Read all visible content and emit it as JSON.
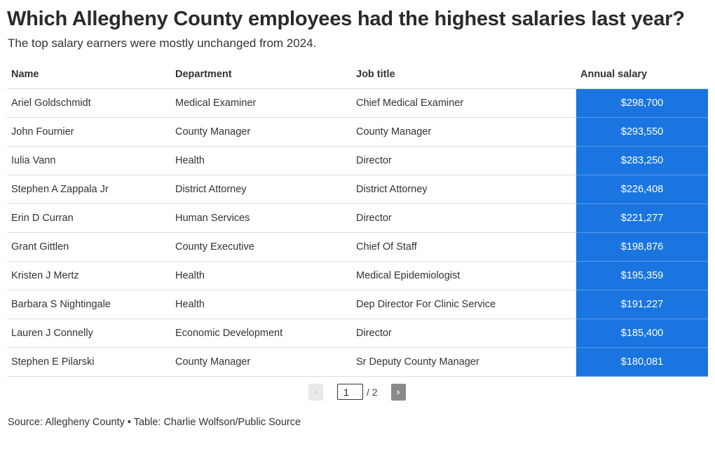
{
  "chart_data": {
    "type": "table",
    "title": "Which Allegheny County employees had the highest salaries last year?",
    "subtitle": "The top salary earners were mostly unchanged from 2024.",
    "columns": [
      "Name",
      "Department",
      "Job title",
      "Annual salary"
    ],
    "rows": [
      {
        "name": "Ariel Goldschmidt",
        "department": "Medical Examiner",
        "job_title": "Chief Medical Examiner",
        "salary": "$298,700",
        "salary_value": 298700
      },
      {
        "name": "John Fournier",
        "department": "County Manager",
        "job_title": "County Manager",
        "salary": "$293,550",
        "salary_value": 293550
      },
      {
        "name": "Iulia Vann",
        "department": "Health",
        "job_title": "Director",
        "salary": "$283,250",
        "salary_value": 283250
      },
      {
        "name": "Stephen A Zappala Jr",
        "department": "District Attorney",
        "job_title": "District Attorney",
        "salary": "$226,408",
        "salary_value": 226408
      },
      {
        "name": "Erin D Curran",
        "department": "Human Services",
        "job_title": "Director",
        "salary": "$221,277",
        "salary_value": 221277
      },
      {
        "name": "Grant Gittlen",
        "department": "County Executive",
        "job_title": "Chief Of Staff",
        "salary": "$198,876",
        "salary_value": 198876
      },
      {
        "name": "Kristen J Mertz",
        "department": "Health",
        "job_title": "Medical Epidemiologist",
        "salary": "$195,359",
        "salary_value": 195359
      },
      {
        "name": "Barbara S Nightingale",
        "department": "Health",
        "job_title": "Dep Director For Clinic Service",
        "salary": "$191,227",
        "salary_value": 191227
      },
      {
        "name": "Lauren J Connelly",
        "department": "Economic Development",
        "job_title": "Director",
        "salary": "$185,400",
        "salary_value": 185400
      },
      {
        "name": "Stephen E Pilarski",
        "department": "County Manager",
        "job_title": "Sr Deputy County Manager",
        "salary": "$180,081",
        "salary_value": 180081
      }
    ],
    "salary_cell_color": "#1a75e0",
    "source": "Source: Allegheny County • Table: Charlie Wolfson/Public Source"
  },
  "pagination": {
    "prev_label": "‹",
    "next_label": "›",
    "current_page": "1",
    "total_label": "/ 2"
  }
}
